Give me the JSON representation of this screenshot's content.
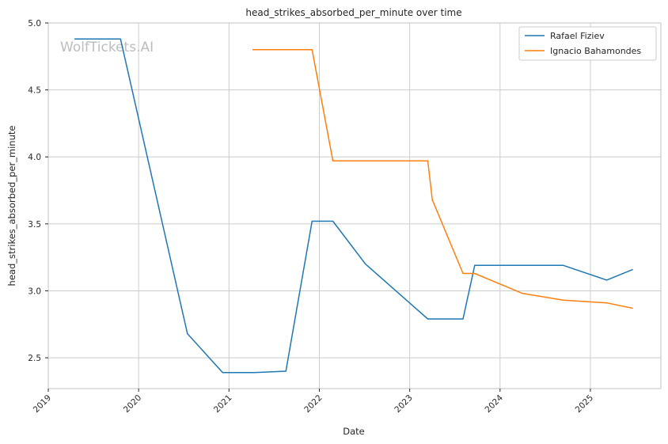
{
  "chart_data": {
    "type": "line",
    "title": "head_strikes_absorbed_per_minute over time",
    "xlabel": "Date",
    "ylabel": "head_strikes_absorbed_per_minute",
    "watermark": "WolfTickets.AI",
    "xlim": [
      2019.0,
      2025.78
    ],
    "ylim": [
      2.27,
      5.0
    ],
    "x_ticks": [
      2019,
      2020,
      2021,
      2022,
      2023,
      2024,
      2025
    ],
    "x_tick_labels": [
      "2019",
      "2020",
      "2021",
      "2022",
      "2023",
      "2024",
      "2025"
    ],
    "y_ticks": [
      2.5,
      3.0,
      3.5,
      4.0,
      4.5,
      5.0
    ],
    "y_tick_labels": [
      "2.5",
      "3.0",
      "3.5",
      "4.0",
      "4.5",
      "5.0"
    ],
    "grid": true,
    "legend_position": "top-right",
    "series": [
      {
        "name": "Rafael Fiziev",
        "color": "#1f77b4",
        "x": [
          2019.29,
          2019.8,
          2020.54,
          2020.93,
          2021.28,
          2021.63,
          2021.92,
          2022.15,
          2022.51,
          2023.2,
          2023.59,
          2023.72,
          2024.7,
          2025.18,
          2025.47
        ],
        "y": [
          4.88,
          4.88,
          2.68,
          2.39,
          2.39,
          2.4,
          3.52,
          3.52,
          3.2,
          2.79,
          2.79,
          3.19,
          3.19,
          3.08,
          3.16
        ]
      },
      {
        "name": "Ignacio Bahamondes",
        "color": "#ff7f0e",
        "x": [
          2021.26,
          2021.92,
          2022.15,
          2023.2,
          2023.25,
          2023.59,
          2023.72,
          2024.25,
          2024.7,
          2025.18,
          2025.47
        ],
        "y": [
          4.8,
          4.8,
          3.97,
          3.97,
          3.68,
          3.13,
          3.13,
          2.98,
          2.93,
          2.91,
          2.87
        ]
      }
    ]
  }
}
